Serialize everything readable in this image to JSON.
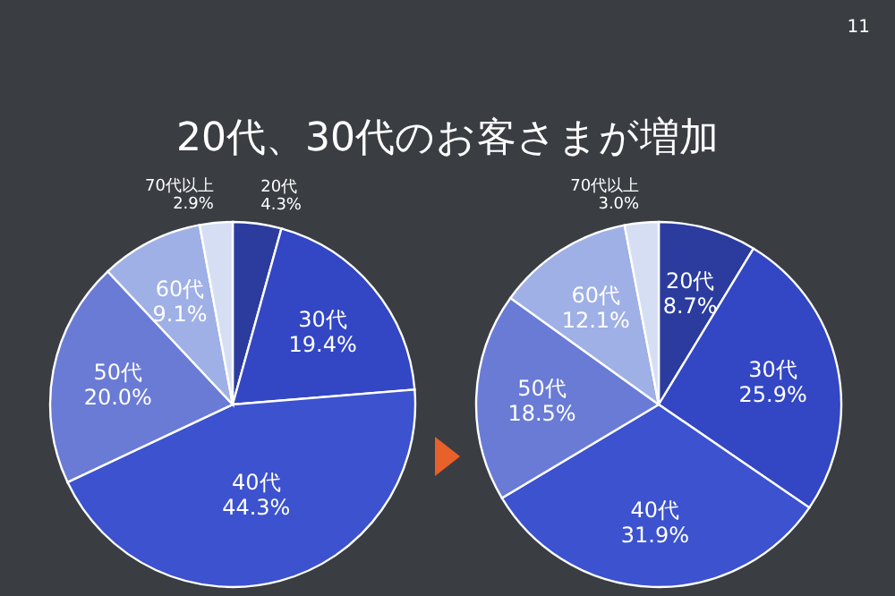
{
  "chart_data": [
    {
      "type": "pie",
      "title": "20代、30代のお客さまが増加",
      "categories": [
        "20代",
        "30代",
        "40代",
        "50代",
        "60代",
        "70代以上"
      ],
      "values": [
        4.3,
        19.4,
        44.3,
        20.0,
        9.1,
        2.9
      ],
      "value_labels": [
        "4.3%",
        "19.4%",
        "44.3%",
        "20.0%",
        "9.1%",
        "2.9%"
      ],
      "colors": [
        "#2b3c9e",
        "#3346c4",
        "#3c52cf",
        "#6a7bd6",
        "#9fb0e6",
        "#d6def4"
      ]
    },
    {
      "type": "pie",
      "annotations": [
        "11"
      ],
      "categories": [
        "20代",
        "30代",
        "40代",
        "50代",
        "60代",
        "70代以上"
      ],
      "values": [
        8.7,
        25.9,
        31.9,
        18.5,
        12.1,
        3.0
      ],
      "value_labels": [
        "8.7%",
        "25.9%",
        "31.9%",
        "18.5%",
        "12.1%",
        "3.0%"
      ],
      "colors": [
        "#2b3c9e",
        "#3346c4",
        "#3c52cf",
        "#6a7bd6",
        "#9fb0e6",
        "#d6def4"
      ]
    }
  ]
}
